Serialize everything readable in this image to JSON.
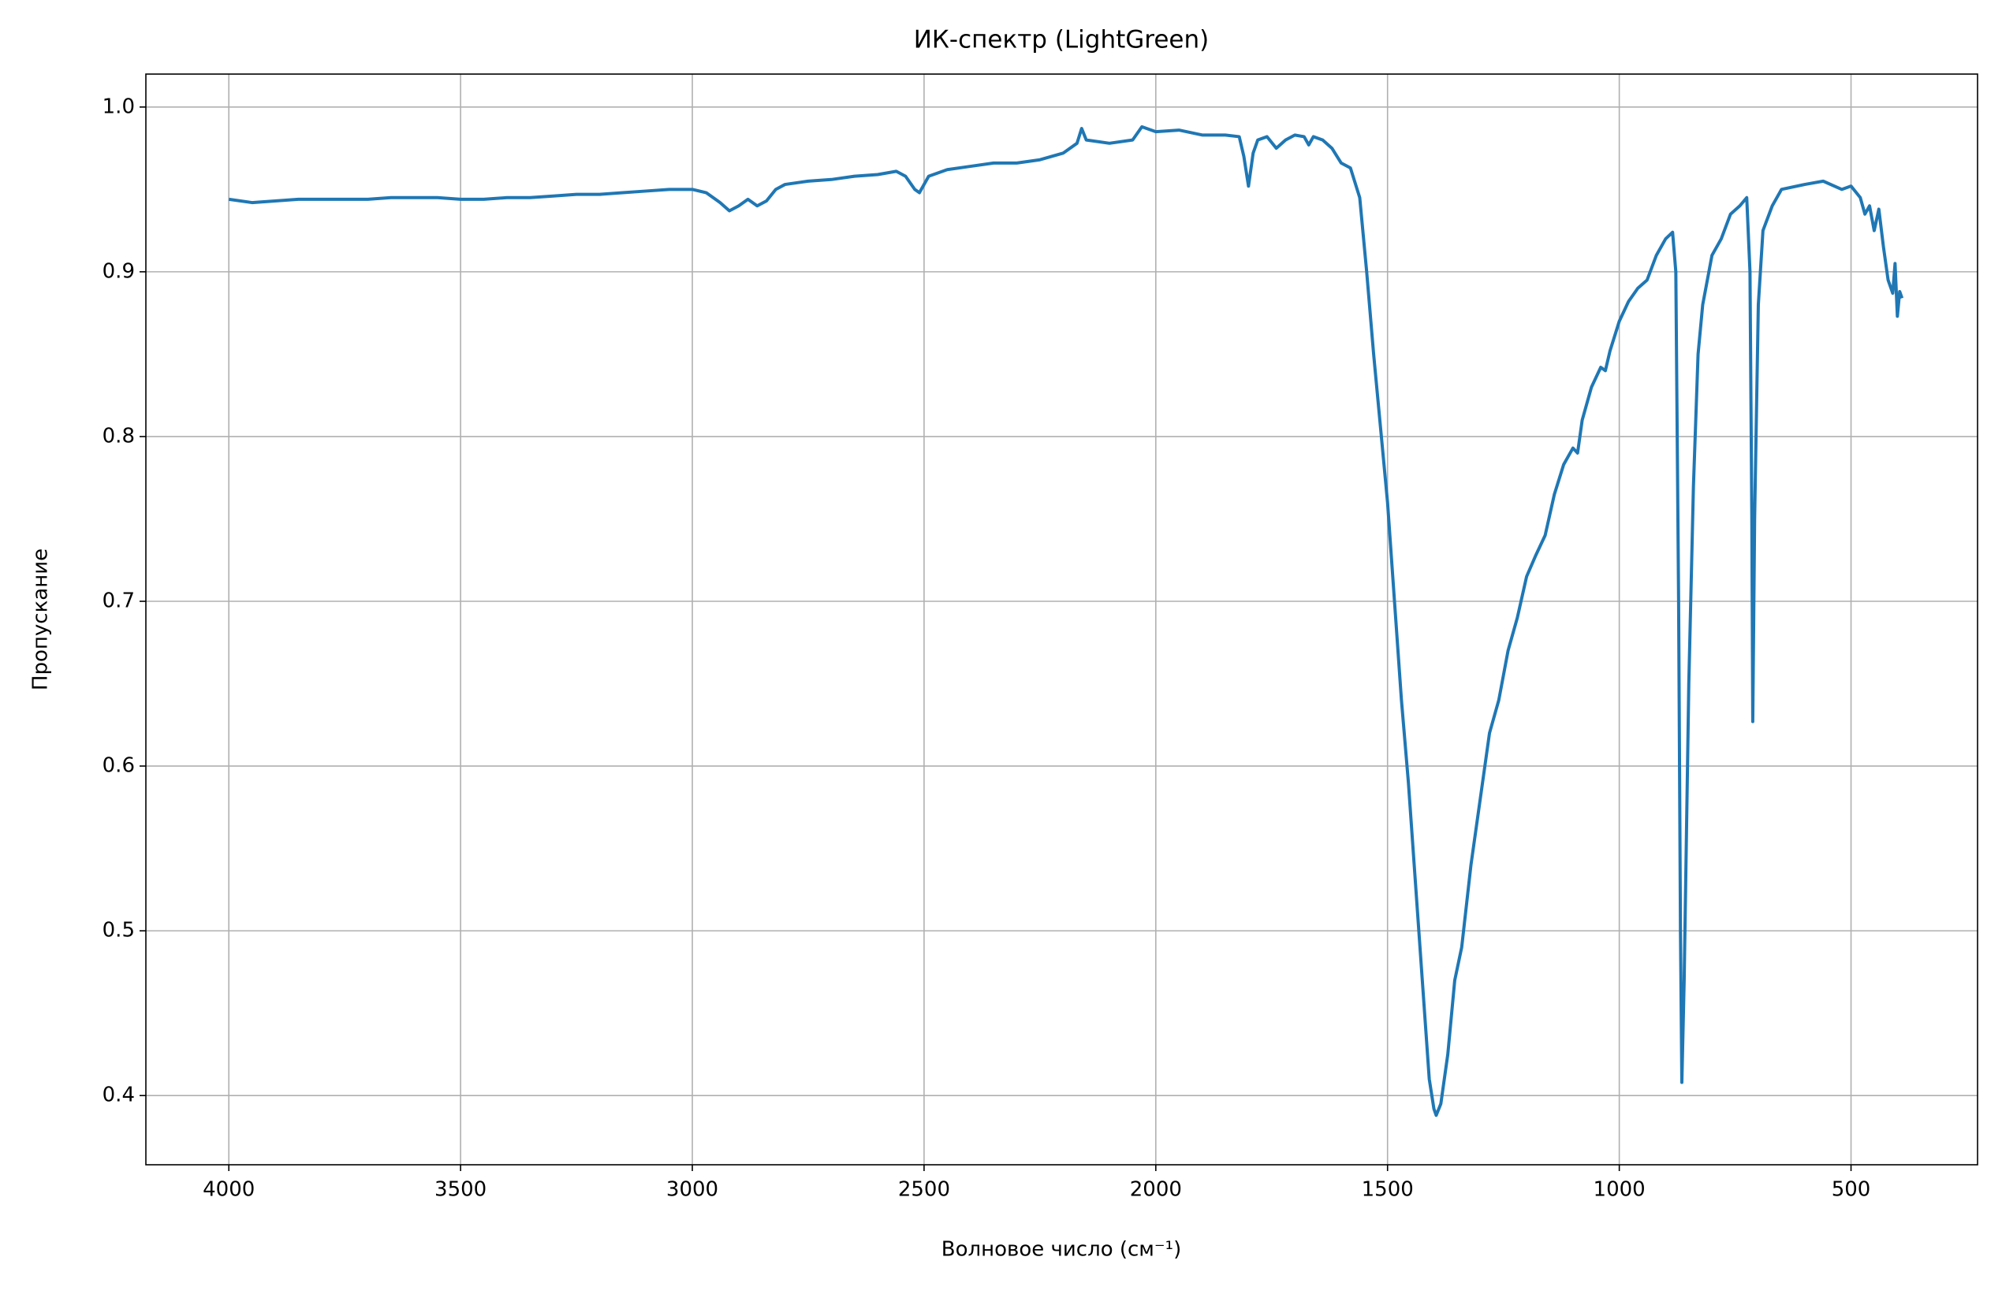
{
  "chart_data": {
    "type": "line",
    "title": "ИК-спектр (LightGreen)",
    "x_label": "Волновое число (см⁻¹)",
    "y_label": "Пропускание",
    "xlim": [
      4179,
      227
    ],
    "ylim": [
      0.358,
      1.02
    ],
    "xticks": [
      4000,
      3500,
      3000,
      2500,
      2000,
      1500,
      1000,
      500
    ],
    "yticks": [
      0.4,
      0.5,
      0.6,
      0.7,
      0.8,
      0.9,
      {
        "value": 1,
        "label": "1.0"
      }
    ],
    "grid": true,
    "series": [
      {
        "name": "LightGreen",
        "color": "#1f77b4",
        "x": [
          4000,
          3950,
          3900,
          3850,
          3800,
          3750,
          3700,
          3650,
          3600,
          3550,
          3500,
          3450,
          3400,
          3350,
          3300,
          3250,
          3200,
          3150,
          3100,
          3050,
          3000,
          2970,
          2940,
          2920,
          2900,
          2880,
          2860,
          2840,
          2820,
          2800,
          2750,
          2700,
          2650,
          2600,
          2560,
          2540,
          2520,
          2510,
          2490,
          2450,
          2400,
          2350,
          2300,
          2250,
          2200,
          2170,
          2160,
          2150,
          2100,
          2050,
          2030,
          2000,
          1950,
          1900,
          1850,
          1820,
          1810,
          1800,
          1790,
          1780,
          1760,
          1740,
          1720,
          1700,
          1680,
          1670,
          1660,
          1640,
          1620,
          1600,
          1580,
          1560,
          1545,
          1530,
          1515,
          1500,
          1485,
          1470,
          1455,
          1440,
          1425,
          1410,
          1400,
          1395,
          1385,
          1370,
          1355,
          1340,
          1320,
          1300,
          1280,
          1260,
          1240,
          1220,
          1200,
          1180,
          1160,
          1140,
          1120,
          1100,
          1090,
          1080,
          1060,
          1040,
          1030,
          1020,
          1000,
          980,
          960,
          940,
          920,
          900,
          885,
          878,
          872,
          868,
          865,
          860,
          850,
          840,
          830,
          820,
          800,
          780,
          760,
          740,
          725,
          718,
          714,
          712,
          708,
          700,
          690,
          670,
          650,
          600,
          560,
          520,
          500,
          480,
          470,
          460,
          450,
          440,
          430,
          420,
          410,
          405,
          400,
          395,
          390
        ],
        "values": [
          0.944,
          0.942,
          0.943,
          0.944,
          0.944,
          0.944,
          0.944,
          0.945,
          0.945,
          0.945,
          0.944,
          0.944,
          0.945,
          0.945,
          0.946,
          0.947,
          0.947,
          0.948,
          0.949,
          0.95,
          0.95,
          0.948,
          0.942,
          0.937,
          0.94,
          0.944,
          0.94,
          0.943,
          0.95,
          0.953,
          0.955,
          0.956,
          0.958,
          0.959,
          0.961,
          0.958,
          0.95,
          0.948,
          0.958,
          0.962,
          0.964,
          0.966,
          0.966,
          0.968,
          0.972,
          0.978,
          0.987,
          0.98,
          0.978,
          0.98,
          0.988,
          0.985,
          0.986,
          0.983,
          0.983,
          0.982,
          0.97,
          0.952,
          0.972,
          0.98,
          0.982,
          0.975,
          0.98,
          0.983,
          0.982,
          0.977,
          0.982,
          0.98,
          0.975,
          0.966,
          0.963,
          0.945,
          0.9,
          0.85,
          0.805,
          0.76,
          0.7,
          0.64,
          0.59,
          0.53,
          0.47,
          0.41,
          0.392,
          0.388,
          0.395,
          0.425,
          0.47,
          0.49,
          0.54,
          0.58,
          0.62,
          0.64,
          0.67,
          0.69,
          0.715,
          0.728,
          0.74,
          0.765,
          0.783,
          0.793,
          0.79,
          0.81,
          0.83,
          0.842,
          0.84,
          0.852,
          0.87,
          0.882,
          0.89,
          0.895,
          0.91,
          0.92,
          0.924,
          0.9,
          0.7,
          0.5,
          0.408,
          0.47,
          0.65,
          0.77,
          0.85,
          0.88,
          0.91,
          0.92,
          0.935,
          0.94,
          0.945,
          0.9,
          0.75,
          0.627,
          0.75,
          0.88,
          0.925,
          0.94,
          0.95,
          0.953,
          0.955,
          0.95,
          0.952,
          0.945,
          0.935,
          0.94,
          0.925,
          0.938,
          0.915,
          0.895,
          0.887,
          0.905,
          0.873,
          0.888,
          0.884
        ]
      }
    ]
  }
}
